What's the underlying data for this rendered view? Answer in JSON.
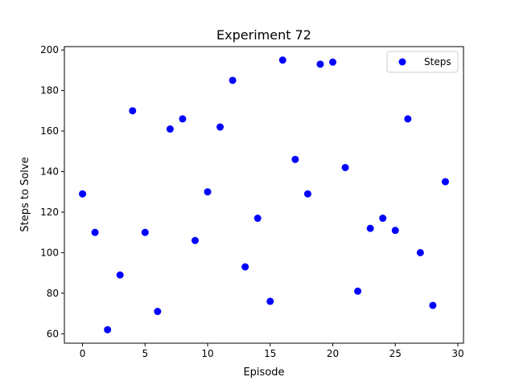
{
  "chart_data": {
    "type": "scatter",
    "title": "Experiment 72",
    "xlabel": "Episode",
    "ylabel": "Steps to Solve",
    "xlim": [
      -1.45,
      30.45
    ],
    "ylim": [
      55.35,
      201.65
    ],
    "xticks": [
      0,
      5,
      10,
      15,
      20,
      25,
      30
    ],
    "yticks": [
      60,
      80,
      100,
      120,
      140,
      160,
      180,
      200
    ],
    "grid": false,
    "legend_position": "upper right",
    "series": [
      {
        "name": "Steps",
        "color": "#0000ff",
        "x": [
          0,
          1,
          2,
          3,
          4,
          5,
          6,
          7,
          8,
          9,
          10,
          11,
          12,
          13,
          14,
          15,
          16,
          17,
          18,
          19,
          20,
          21,
          22,
          23,
          24,
          25,
          26,
          27,
          28,
          29
        ],
        "y": [
          129,
          110,
          62,
          89,
          170,
          110,
          71,
          161,
          166,
          106,
          130,
          162,
          185,
          93,
          117,
          76,
          195,
          146,
          129,
          193,
          194,
          142,
          81,
          112,
          117,
          111,
          166,
          100,
          74,
          135
        ]
      }
    ]
  }
}
